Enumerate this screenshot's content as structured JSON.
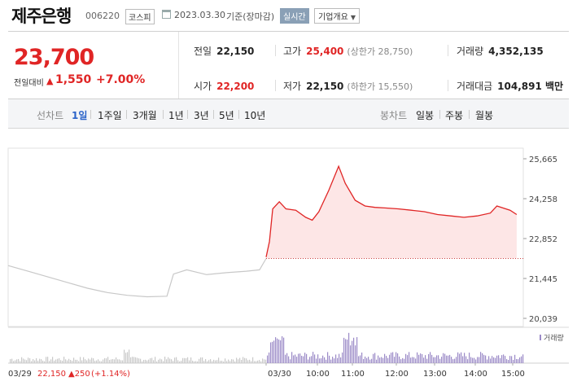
{
  "header": {
    "title": "제주은행",
    "code": "006220",
    "market": "코스피",
    "date": "2023.03.30",
    "basis": "기준(장마감)",
    "live_label": "실시간",
    "corp_label": "기업개요"
  },
  "price": {
    "current": "23,700",
    "change_label": "전일대비",
    "change": "1,550",
    "change_pct": "+7.00%"
  },
  "stats": {
    "prev_label": "전일",
    "prev": "22,150",
    "high_label": "고가",
    "high": "25,400",
    "upper_limit": "(상한가 28,750)",
    "volume_label": "거래량",
    "volume": "4,352,135",
    "open_label": "시가",
    "open": "22,200",
    "low_label": "저가",
    "low": "22,150",
    "lower_limit": "(하한가 15,550)",
    "amount_label": "거래대금",
    "amount": "104,891 백만"
  },
  "tabs": {
    "line_label": "선차트",
    "periods": [
      "1일",
      "1주일",
      "3개월",
      "1년",
      "3년",
      "5년",
      "10년"
    ],
    "selected": "1일",
    "candle_label": "봉차트",
    "candles": [
      "일봉",
      "주봉",
      "월봉"
    ]
  },
  "colors": {
    "up": "#e02525",
    "prev_line": "#c8c8c8",
    "fill": "#fde6e6",
    "volume": "#9b8ac7",
    "accent": "#2a63c9"
  },
  "chart_data": {
    "type": "line",
    "y_ticks": [
      "25,665",
      "24,258",
      "22,852",
      "21,445",
      "20,039"
    ],
    "ylim": [
      20039,
      25665
    ],
    "baseline": 22150,
    "x_labels": [
      "03/30",
      "10:00",
      "11:00",
      "12:00",
      "13:00",
      "14:00",
      "15:00"
    ],
    "volume_label": "거래량",
    "prev_day": [
      [
        "09:00",
        21900
      ],
      [
        "09:30",
        21700
      ],
      [
        "10:00",
        21500
      ],
      [
        "10:30",
        21300
      ],
      [
        "11:00",
        21100
      ],
      [
        "11:30",
        20950
      ],
      [
        "12:00",
        20850
      ],
      [
        "12:30",
        20800
      ],
      [
        "13:00",
        20820
      ],
      [
        "13:10",
        21600
      ],
      [
        "13:30",
        21750
      ],
      [
        "14:00",
        21580
      ],
      [
        "14:30",
        21650
      ],
      [
        "15:00",
        21700
      ],
      [
        "15:20",
        21750
      ],
      [
        "15:30",
        22150
      ]
    ],
    "today": [
      [
        "09:00",
        22200
      ],
      [
        "09:05",
        22750
      ],
      [
        "09:10",
        23900
      ],
      [
        "09:20",
        24150
      ],
      [
        "09:30",
        23900
      ],
      [
        "09:45",
        23850
      ],
      [
        "10:00",
        23600
      ],
      [
        "10:10",
        23500
      ],
      [
        "10:20",
        23800
      ],
      [
        "10:35",
        24550
      ],
      [
        "10:50",
        25400
      ],
      [
        "11:00",
        24800
      ],
      [
        "11:15",
        24200
      ],
      [
        "11:30",
        24000
      ],
      [
        "11:45",
        23950
      ],
      [
        "12:00",
        23930
      ],
      [
        "12:20",
        23900
      ],
      [
        "12:40",
        23850
      ],
      [
        "13:00",
        23800
      ],
      [
        "13:20",
        23700
      ],
      [
        "13:40",
        23650
      ],
      [
        "14:00",
        23600
      ],
      [
        "14:20",
        23650
      ],
      [
        "14:40",
        23750
      ],
      [
        "14:50",
        24000
      ],
      [
        "15:10",
        23850
      ],
      [
        "15:20",
        23700
      ]
    ],
    "footer_prev": {
      "date": "03/29",
      "price": "22,150",
      "change": "▲250",
      "pct": "(+1.14%)"
    }
  }
}
